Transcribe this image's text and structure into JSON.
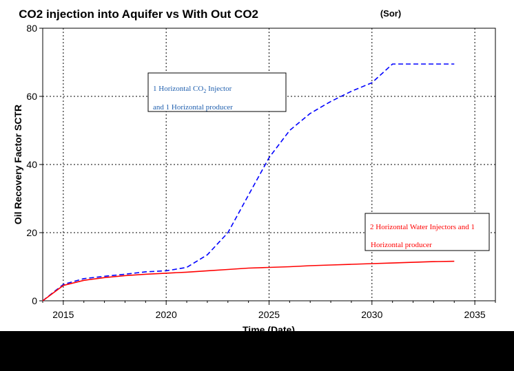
{
  "chart_data": {
    "type": "line",
    "title": "CO2 injection into Aquifer vs With Out CO2",
    "subtitle": "(Sor)",
    "xlabel": "Time (Date)",
    "ylabel": "Oil Recovery Factor SCTR",
    "xlim": [
      2014,
      2036
    ],
    "ylim": [
      0,
      80
    ],
    "xticks": [
      2015,
      2020,
      2025,
      2030,
      2035
    ],
    "yticks": [
      0,
      20,
      40,
      60,
      80
    ],
    "grid": true,
    "series": [
      {
        "legend_lines": [
          "1 Horizontal CO",
          "2",
          " Injector",
          "and 1 Horizontal producer"
        ],
        "color": "#0000ff",
        "line_style": "dashed",
        "x": [
          2014,
          2015,
          2016,
          2017,
          2018,
          2019,
          2020,
          2021,
          2022,
          2023,
          2024,
          2025,
          2026,
          2027,
          2028,
          2029,
          2030,
          2031,
          2032,
          2033,
          2034
        ],
        "y": [
          0,
          4.8,
          6.5,
          7.2,
          7.8,
          8.5,
          8.8,
          9.8,
          13.5,
          20,
          31,
          42,
          50,
          55,
          58.5,
          61.5,
          64,
          69.5,
          69.5,
          69.5,
          69.5
        ]
      },
      {
        "legend_lines": [
          "2 Horizontal Water Injectors and 1",
          "Horizontal producer"
        ],
        "color": "#ff0000",
        "line_style": "solid",
        "x": [
          2014,
          2015,
          2016,
          2017,
          2018,
          2019,
          2020,
          2021,
          2022,
          2023,
          2024,
          2025,
          2026,
          2027,
          2028,
          2029,
          2030,
          2031,
          2032,
          2033,
          2034
        ],
        "y": [
          0,
          4.5,
          6,
          6.8,
          7.4,
          7.8,
          8.1,
          8.4,
          8.8,
          9.2,
          9.6,
          9.8,
          10,
          10.3,
          10.5,
          10.7,
          10.9,
          11.1,
          11.3,
          11.5,
          11.6
        ]
      }
    ]
  }
}
